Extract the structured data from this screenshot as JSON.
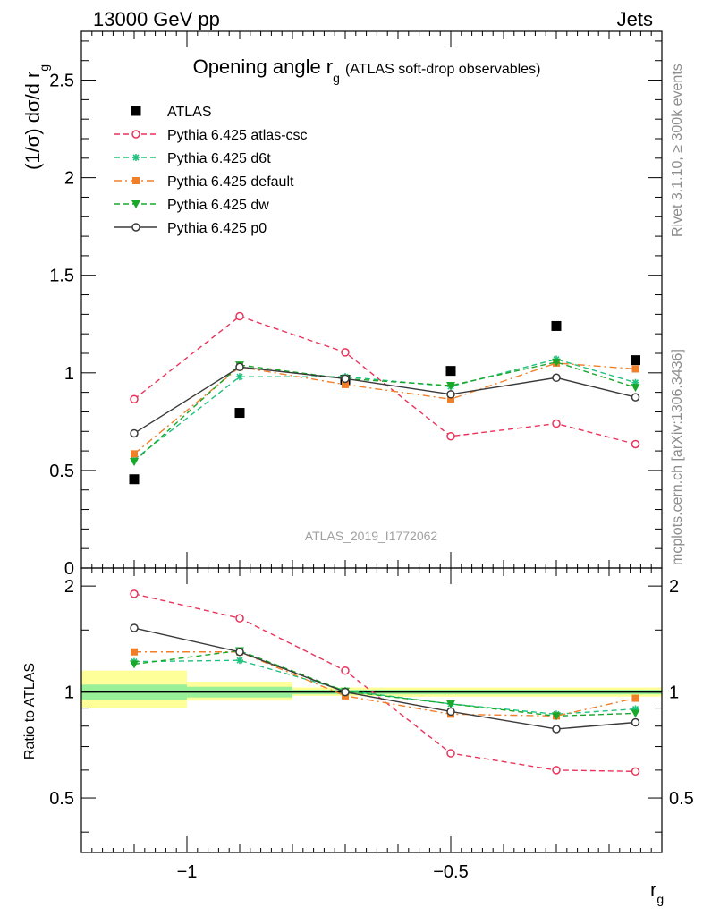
{
  "header": {
    "left": "13000 GeV pp",
    "right": "Jets"
  },
  "title": {
    "main": "Opening angle r",
    "sub": "g",
    "suffix": "(ATLAS soft-drop observables)"
  },
  "ylabel_main": {
    "pre": "(1/σ) dσ/d r",
    "sub": "g"
  },
  "ylabel_ratio": "Ratio to ATLAS",
  "xlabel": {
    "main": "r",
    "sub": "g"
  },
  "watermark": "ATLAS_2019_I1772062",
  "side_text": {
    "rivet": "Rivet 3.1.10, ≥ 300k events",
    "mcplots": "mcplots.cern.ch [arXiv:1306.3436]"
  },
  "colors": {
    "data": "#000000",
    "atlas_csc": "#e8335a",
    "d6t": "#1fc27f",
    "default": "#f07f2a",
    "dw": "#1aa82a",
    "p0": "#3a3a3a",
    "band_inner": "#98f098",
    "band_outer": "#ffff99"
  },
  "chart_data": [
    {
      "type": "scatter",
      "panel": "main",
      "xlim": [
        -1.2,
        -0.1
      ],
      "ylim": [
        0,
        2.75
      ],
      "ylog": false,
      "x_ticks": [
        "−1",
        "−0.5"
      ],
      "y_ticks": [
        "0",
        "0.5",
        "1",
        "1.5",
        "2",
        "2.5"
      ],
      "legend_position": "top-left",
      "x": [
        -1.1,
        -0.9,
        -0.7,
        -0.5,
        -0.3,
        -0.15
      ],
      "series": [
        {
          "name": "ATLAS",
          "key": "data",
          "style": "square",
          "values": [
            0.455,
            0.795,
            0.965,
            1.01,
            1.24,
            1.065
          ]
        },
        {
          "name": "Pythia 6.425 atlas-csc",
          "key": "atlas_csc",
          "style": "open-circle-dashed",
          "values": [
            0.865,
            1.29,
            1.105,
            0.675,
            0.74,
            0.635
          ]
        },
        {
          "name": "Pythia 6.425 d6t",
          "key": "d6t",
          "style": "star-dashed",
          "values": [
            0.555,
            0.98,
            0.98,
            0.93,
            1.07,
            0.95
          ]
        },
        {
          "name": "Pythia 6.425 default",
          "key": "default",
          "style": "square-dashdot",
          "values": [
            0.585,
            1.03,
            0.94,
            0.865,
            1.05,
            1.02
          ]
        },
        {
          "name": "Pythia 6.425 dw",
          "key": "dw",
          "style": "triangle-dashed",
          "values": [
            0.545,
            1.04,
            0.97,
            0.935,
            1.055,
            0.925
          ]
        },
        {
          "name": "Pythia 6.425 p0",
          "key": "p0",
          "style": "open-circle-solid",
          "values": [
            0.69,
            1.03,
            0.97,
            0.89,
            0.975,
            0.875
          ]
        }
      ]
    },
    {
      "type": "line",
      "panel": "ratio",
      "xlim": [
        -1.2,
        -0.1
      ],
      "ylim": [
        0.35,
        2.25
      ],
      "ylog": true,
      "y_ticks": [
        "0.5",
        "1",
        "2"
      ],
      "reference_line": 1.0,
      "bins": [
        [
          -1.2,
          -1.0
        ],
        [
          -1.0,
          -0.8
        ],
        [
          -0.8,
          -0.6
        ],
        [
          -0.6,
          -0.4
        ],
        [
          -0.4,
          -0.2
        ],
        [
          -0.2,
          -0.1
        ]
      ],
      "band_inner": [
        [
          0.95,
          1.05
        ],
        [
          0.965,
          1.035
        ],
        [
          0.985,
          1.015
        ],
        [
          0.985,
          1.015
        ],
        [
          0.985,
          1.015
        ],
        [
          0.985,
          1.015
        ]
      ],
      "band_outer": [
        [
          0.9,
          1.15
        ],
        [
          0.945,
          1.07
        ],
        [
          0.975,
          1.03
        ],
        [
          0.97,
          1.03
        ],
        [
          0.97,
          1.03
        ],
        [
          0.97,
          1.03
        ]
      ],
      "x": [
        -1.1,
        -0.9,
        -0.7,
        -0.5,
        -0.3,
        -0.15
      ],
      "series": [
        {
          "name": "Pythia 6.425 atlas-csc",
          "key": "atlas_csc",
          "values": [
            1.9,
            1.62,
            1.15,
            0.67,
            0.6,
            0.595
          ]
        },
        {
          "name": "Pythia 6.425 d6t",
          "key": "d6t",
          "values": [
            1.22,
            1.23,
            1.01,
            0.925,
            0.865,
            0.895
          ]
        },
        {
          "name": "Pythia 6.425 default",
          "key": "default",
          "values": [
            1.3,
            1.3,
            0.975,
            0.865,
            0.855,
            0.96
          ]
        },
        {
          "name": "Pythia 6.425 dw",
          "key": "dw",
          "values": [
            1.2,
            1.31,
            1.005,
            0.925,
            0.855,
            0.87
          ]
        },
        {
          "name": "Pythia 6.425 p0",
          "key": "p0",
          "values": [
            1.52,
            1.3,
            1.0,
            0.88,
            0.785,
            0.82
          ]
        }
      ]
    }
  ]
}
